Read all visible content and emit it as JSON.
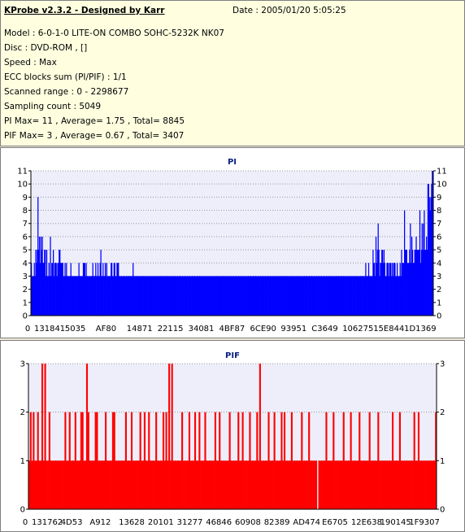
{
  "info": {
    "app_title": "KProbe v2.3.2 - Designed by Karr",
    "date": "Date : 2005/01/20 5:05:25",
    "model": "Model : 6-0-1-0 LITE-ON COMBO SOHC-5232K NK07",
    "disc": "Disc : DVD-ROM ,  []",
    "speed": "Speed : Max",
    "ecc": "ECC blocks sum (PI/PIF) : 1/1",
    "range": "Scanned range : 0 - 2298677",
    "sampling": "Sampling count : 5049",
    "pi_stats": "PI Max= 11 , Average= 1.75 , Total= 8845",
    "pif_stats": "PIF Max= 3 , Average= 0.67 , Total= 3407"
  },
  "colors": {
    "pi_bar": "#0000ff",
    "pif_bar": "#ff0000",
    "plot_bg": "#eeeefa",
    "title": "#0a2080"
  },
  "chart_data": [
    {
      "type": "bar",
      "title": "PI",
      "xlabel": "",
      "ylabel": "",
      "ylim": [
        0,
        11
      ],
      "yticks": [
        0,
        1,
        2,
        3,
        4,
        5,
        6,
        7,
        8,
        9,
        10,
        11
      ],
      "x_tick_labels": [
        "0",
        "131841",
        "5035",
        "AF80",
        "14871",
        "22115",
        "34081",
        "4BF87",
        "6CE90",
        "93951",
        "C3649",
        "106275",
        "15E844",
        "1D1369"
      ],
      "grid": true,
      "series": [
        {
          "values": [
            4,
            3,
            3,
            3,
            4,
            3,
            5,
            4,
            5,
            9,
            5,
            6,
            4,
            6,
            5,
            6,
            4,
            4,
            5,
            5,
            3,
            5,
            3,
            3,
            4,
            3,
            6,
            3,
            4,
            4,
            5,
            3,
            4,
            4,
            4,
            3,
            4,
            4,
            5,
            5,
            4,
            4,
            4,
            4,
            3,
            3,
            4,
            3,
            4,
            3,
            3,
            3,
            3,
            3,
            4,
            3,
            3,
            3,
            3,
            3,
            3,
            3,
            3,
            3,
            3,
            4,
            3,
            3,
            3,
            3,
            3,
            4,
            4,
            4,
            3,
            4,
            3,
            3,
            3,
            3,
            3,
            3,
            3,
            3,
            4,
            3,
            3,
            3,
            4,
            3,
            3,
            4,
            3,
            3,
            4,
            5,
            3,
            3,
            4,
            3,
            3,
            4,
            3,
            4,
            3,
            3,
            3,
            3,
            3,
            4,
            4,
            3,
            3,
            4,
            4,
            3,
            3,
            4,
            4,
            4,
            3,
            3,
            3,
            3,
            3,
            3,
            3,
            3,
            3,
            3,
            3,
            3,
            3,
            3,
            3,
            3,
            3,
            3,
            3,
            4,
            3,
            3,
            3,
            3,
            3,
            3,
            3,
            3,
            3,
            3,
            3,
            3,
            3,
            3,
            3,
            3,
            3,
            3,
            3,
            3,
            3,
            3,
            3,
            3,
            3,
            3,
            3,
            3,
            3,
            3,
            3,
            3,
            3,
            3,
            3,
            3,
            3,
            3,
            3,
            3,
            3,
            3,
            3,
            3,
            3,
            3,
            3,
            3,
            3,
            3,
            3,
            3,
            3,
            3,
            3,
            3,
            3,
            3,
            3,
            3,
            3,
            3,
            3,
            3,
            3,
            3,
            3,
            3,
            3,
            3,
            3,
            3,
            3,
            3,
            3,
            3,
            3,
            3,
            3,
            3,
            3,
            3,
            3,
            3,
            3,
            3,
            3,
            3,
            3,
            3,
            3,
            3,
            3,
            3,
            3,
            3,
            3,
            3,
            3,
            3,
            3,
            3,
            3,
            3,
            3,
            3,
            3,
            3,
            3,
            3,
            3,
            3,
            3,
            3,
            3,
            3,
            3,
            3,
            3,
            3,
            3,
            3,
            3,
            3,
            3,
            3,
            3,
            3,
            3,
            3,
            3,
            3,
            3,
            3,
            3,
            3,
            3,
            3,
            3,
            3,
            3,
            3,
            3,
            3,
            3,
            3,
            3,
            3,
            3,
            3,
            3,
            3,
            3,
            3,
            3,
            3,
            3,
            3,
            3,
            3,
            3,
            3,
            3,
            3,
            3,
            3,
            3,
            3,
            3,
            3,
            3,
            3,
            3,
            3,
            3,
            3,
            3,
            3,
            3,
            3,
            3,
            3,
            3,
            3,
            3,
            3,
            3,
            3,
            3,
            3,
            3,
            3,
            3,
            3,
            3,
            3,
            3,
            3,
            3,
            3,
            3,
            3,
            3,
            3,
            3,
            3,
            3,
            3,
            3,
            3,
            3,
            3,
            3,
            3,
            3,
            3,
            3,
            3,
            3,
            3,
            3,
            3,
            3,
            3,
            3,
            3,
            3,
            3,
            3,
            3,
            3,
            3,
            3,
            3,
            3,
            3,
            3,
            3,
            3,
            3,
            3,
            3,
            3,
            3,
            3,
            3,
            3,
            3,
            3,
            3,
            3,
            3,
            3,
            3,
            3,
            3,
            3,
            3,
            3,
            3,
            3,
            3,
            3,
            3,
            3,
            3,
            3,
            3,
            3,
            3,
            3,
            3,
            3,
            3,
            3,
            3,
            3,
            3,
            3,
            3,
            3,
            3,
            3,
            3,
            3,
            3,
            3,
            3,
            3,
            3,
            3,
            3,
            3,
            3,
            3,
            3,
            3,
            3,
            3,
            3,
            3,
            3,
            3,
            3,
            3,
            3,
            3,
            3,
            3,
            3,
            3,
            3,
            3,
            3,
            3,
            3,
            3,
            4,
            3,
            3,
            3,
            4,
            3,
            3,
            3,
            3,
            3,
            5,
            4,
            4,
            3,
            6,
            4,
            5,
            7,
            5,
            3,
            4,
            4,
            5,
            5,
            4,
            5,
            4,
            3,
            3,
            4,
            4,
            4,
            3,
            4,
            4,
            3,
            4,
            3,
            4,
            4,
            4,
            3,
            3,
            4,
            3,
            3,
            3,
            4,
            3,
            5,
            4,
            4,
            4,
            8,
            5,
            5,
            5,
            4,
            4,
            4,
            5,
            7,
            4,
            6,
            5,
            4,
            4,
            5,
            5,
            6,
            5,
            5,
            5,
            5,
            8,
            4,
            5,
            7,
            5,
            7,
            8,
            5,
            5,
            6,
            5,
            10,
            10,
            9,
            8,
            9,
            10,
            11,
            9
          ]
        }
      ]
    },
    {
      "type": "bar",
      "title": "PIF",
      "xlabel": "",
      "ylabel": "",
      "ylim": [
        0,
        3
      ],
      "yticks": [
        0,
        1,
        2,
        3
      ],
      "x_tick_labels": [
        "0",
        "131762",
        "4D53",
        "A912",
        "13628",
        "20101",
        "31277",
        "46846",
        "60908",
        "82389",
        "AD474",
        "E6705",
        "12E638",
        "190145",
        "1F9307"
      ],
      "grid": true,
      "series": [
        {
          "values": [
            1,
            2,
            1,
            2,
            1,
            1,
            2,
            1,
            1,
            3,
            1,
            3,
            1,
            1,
            2,
            1,
            1,
            1,
            1,
            1,
            1,
            1,
            1,
            1,
            1,
            2,
            1,
            1,
            2,
            1,
            1,
            1,
            2,
            1,
            1,
            1,
            2,
            2,
            1,
            1,
            3,
            2,
            1,
            1,
            1,
            1,
            2,
            2,
            1,
            1,
            1,
            1,
            1,
            2,
            1,
            1,
            1,
            1,
            2,
            2,
            1,
            1,
            1,
            1,
            1,
            1,
            1,
            2,
            1,
            1,
            1,
            2,
            1,
            1,
            1,
            1,
            1,
            2,
            1,
            1,
            2,
            1,
            1,
            2,
            1,
            1,
            1,
            1,
            2,
            1,
            1,
            1,
            1,
            2,
            1,
            2,
            1,
            3,
            1,
            3,
            1,
            1,
            1,
            1,
            1,
            1,
            2,
            1,
            1,
            1,
            1,
            2,
            1,
            1,
            1,
            2,
            1,
            1,
            2,
            1,
            1,
            1,
            2,
            1,
            1,
            1,
            1,
            1,
            1,
            2,
            1,
            1,
            2,
            1,
            1,
            1,
            1,
            1,
            1,
            2,
            1,
            1,
            1,
            1,
            1,
            2,
            1,
            1,
            2,
            1,
            1,
            1,
            1,
            2,
            1,
            1,
            1,
            1,
            2,
            1,
            3,
            1,
            1,
            1,
            1,
            1,
            2,
            1,
            1,
            1,
            2,
            1,
            1,
            1,
            1,
            2,
            1,
            2,
            1,
            1,
            1,
            1,
            2,
            1,
            1,
            1,
            1,
            1,
            1,
            2,
            1,
            1,
            1,
            1,
            2,
            1,
            1,
            1,
            1,
            1,
            0,
            1,
            1,
            1,
            1,
            1,
            2,
            1,
            1,
            1,
            1,
            2,
            1,
            1,
            1,
            1,
            1,
            1,
            2,
            1,
            1,
            1,
            1,
            2,
            1,
            1,
            1,
            1,
            1,
            2,
            1,
            1,
            1,
            1,
            1,
            1,
            2,
            1,
            1,
            1,
            1,
            1,
            2,
            1,
            1,
            1,
            1,
            1,
            1,
            1,
            1,
            1,
            2,
            1,
            1,
            1,
            1,
            2,
            1,
            1,
            1,
            1,
            1,
            1,
            1,
            1,
            1,
            2,
            1,
            1,
            2,
            1,
            1,
            1,
            1,
            1,
            1,
            1,
            1,
            1,
            1,
            1,
            2
          ]
        }
      ]
    }
  ]
}
